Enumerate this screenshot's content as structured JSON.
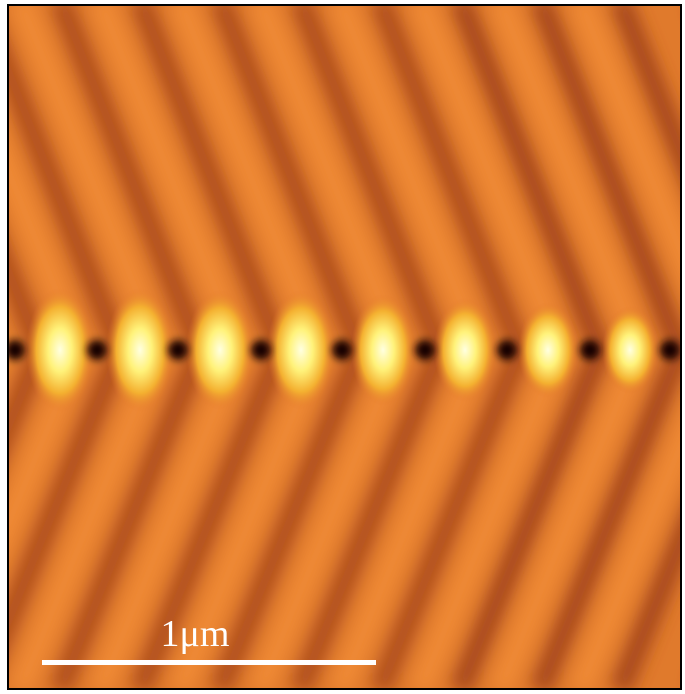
{
  "scale_bar": {
    "label": "1μm"
  }
}
